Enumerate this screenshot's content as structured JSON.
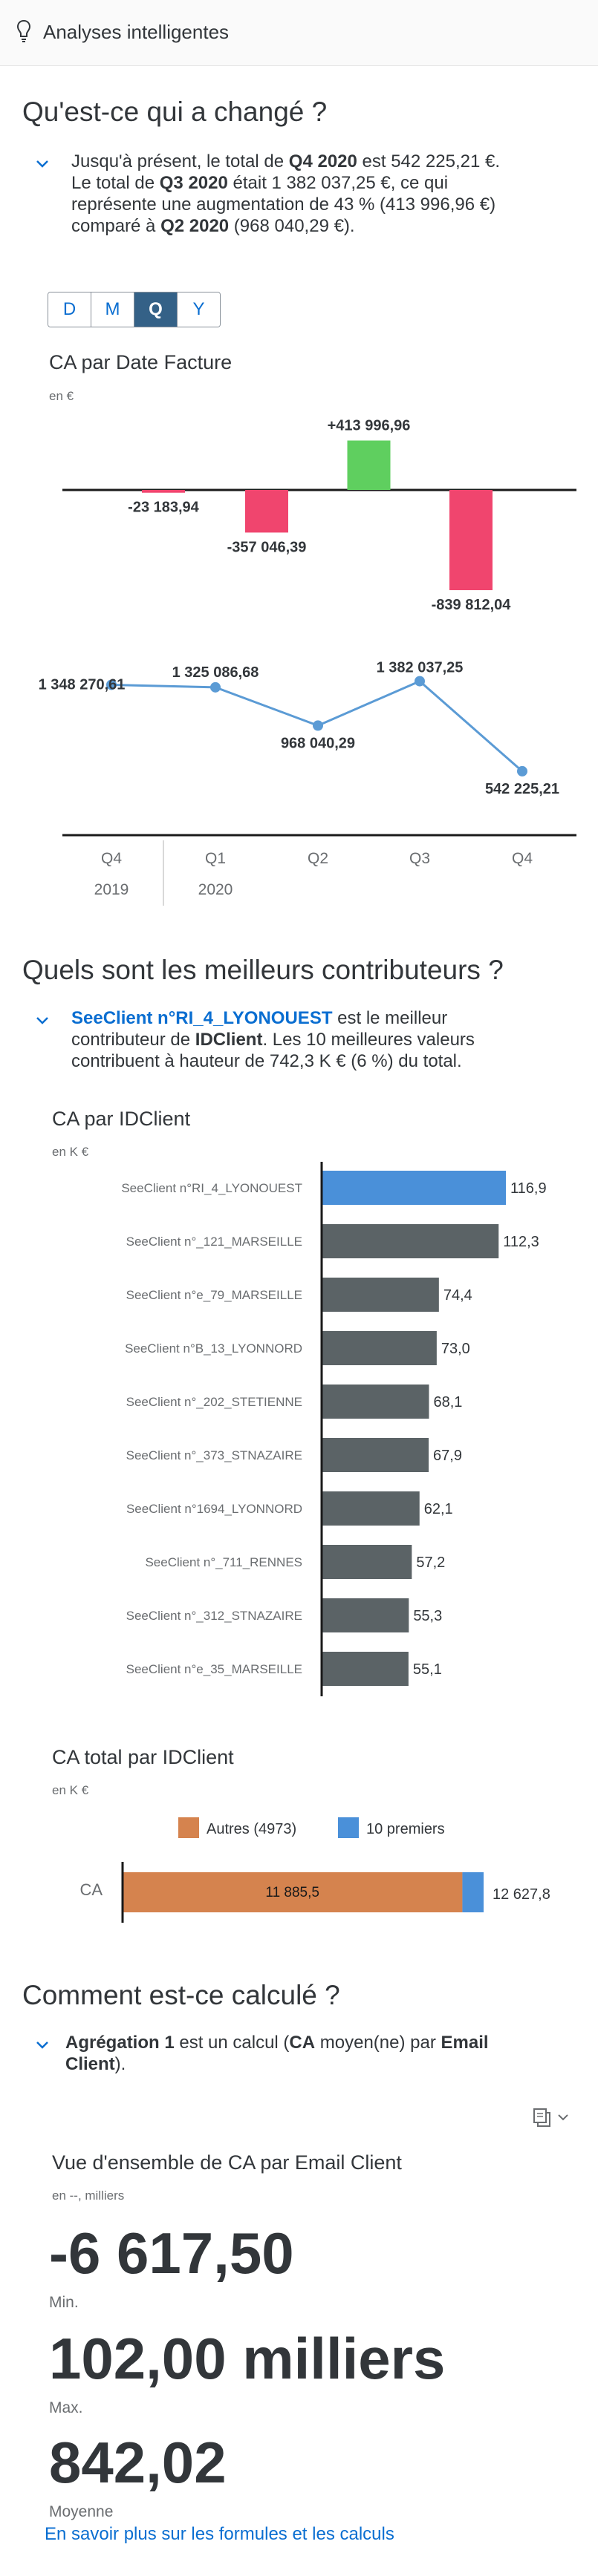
{
  "header": {
    "title": "Analyses intelligentes",
    "icon": "lightbulb-icon"
  },
  "section1": {
    "heading": "Qu'est-ce qui a changé ?",
    "summary": [
      {
        "t": "Jusqu'à présent, le total de ",
        "b": false
      },
      {
        "t": "Q4 2020",
        "b": true
      },
      {
        "t": " est 542 225,21 €. Le total de ",
        "b": false
      },
      {
        "t": "Q3 2020",
        "b": true
      },
      {
        "t": " était 1 382 037,25 €, ce qui représente une augmentation de 43 % (413 996,96 €) comparé à ",
        "b": false
      },
      {
        "t": "Q2 2020",
        "b": true
      },
      {
        "t": " (968 040,29 €).",
        "b": false
      }
    ],
    "granularity": {
      "options": [
        "D",
        "M",
        "Q",
        "Y"
      ],
      "selected": "Q"
    },
    "chart_title": "CA par Date Facture",
    "chart_unit": "en €"
  },
  "section2": {
    "heading": "Quels sont les meilleurs contributeurs ?",
    "summary": [
      {
        "t": "SeeClient n°RI_4_LYONOUEST",
        "b": "link"
      },
      {
        "t": " est le meilleur contributeur de ",
        "b": false
      },
      {
        "t": "IDClient",
        "b": true
      },
      {
        "t": ". Les 10 meilleures valeurs contribuent à hauteur de 742,3 K € (6 %) du total.",
        "b": false
      }
    ],
    "bar_title": "CA par IDClient",
    "bar_unit": "en K €",
    "total_title": "CA total par IDClient",
    "total_unit": "en K €"
  },
  "section3": {
    "heading": "Comment est-ce calculé ?",
    "summary": [
      {
        "t": "Agrégation 1",
        "b": true
      },
      {
        "t": " est un calcul (",
        "b": false
      },
      {
        "t": "CA",
        "b": true
      },
      {
        "t": " moyen(ne) par ",
        "b": false
      },
      {
        "t": "Email Client",
        "b": true
      },
      {
        "t": ").",
        "b": false
      }
    ],
    "card_title": "Vue d'ensemble de CA par Email Client",
    "card_unit": "en --, milliers",
    "kpis": [
      {
        "value": "-6 617,50",
        "label": "Min."
      },
      {
        "value": "102,00 milliers",
        "label": "Max."
      },
      {
        "value": "842,02",
        "label": "Moyenne"
      }
    ],
    "footer_link": "En savoir plus sur les formules et les calculs",
    "copy_icon": "copy-icon"
  },
  "colors": {
    "positive": "#5fcf5f",
    "negative": "#f0456e",
    "highlight": "#4a90d9",
    "bar": "#5b6366",
    "others": "#d5834e",
    "line": "#5b9bd5",
    "link": "#0a6ed1"
  },
  "chart_data": [
    {
      "type": "bar",
      "subtype": "waterfall-variance",
      "title": "CA par Date Facture",
      "unit": "en €",
      "categories": [
        "Q4 2019",
        "Q1 2020",
        "Q2 2020",
        "Q3 2020",
        "Q4 2020"
      ],
      "labels": [
        "-23 183,94",
        "-357 046,39",
        "+413 996,96",
        "-839 812,04"
      ],
      "values": [
        -23183.94,
        -357046.39,
        413996.96,
        -839812.04
      ]
    },
    {
      "type": "line",
      "x": [
        "Q4",
        "Q1",
        "Q2",
        "Q3",
        "Q4"
      ],
      "x_years": [
        "2019",
        "2020"
      ],
      "values": [
        1348270.61,
        1325086.68,
        968040.29,
        1382037.25,
        542225.21
      ],
      "labels": [
        "1 348 270,61",
        "1 325 086,68",
        "968 040,29",
        "1 382 037,25",
        "542 225,21"
      ]
    },
    {
      "type": "bar",
      "orientation": "horizontal",
      "title": "CA par IDClient",
      "unit": "en K €",
      "categories": [
        "SeeClient n°RI_4_LYONOUEST",
        "SeeClient n°_121_MARSEILLE",
        "SeeClient n°e_79_MARSEILLE",
        "SeeClient n°B_13_LYONNORD",
        "SeeClient n°_202_STETIENNE",
        "SeeClient n°_373_STNAZAIRE",
        "SeeClient n°1694_LYONNORD",
        "SeeClient n°_711_RENNES",
        "SeeClient n°_312_STNAZAIRE",
        "SeeClient n°e_35_MARSEILLE"
      ],
      "values": [
        116.9,
        112.3,
        74.4,
        73.0,
        68.1,
        67.9,
        62.1,
        57.2,
        55.3,
        55.1
      ],
      "labels": [
        "116,9",
        "112,3",
        "74,4",
        "73,0",
        "68,1",
        "67,9",
        "62,1",
        "57,2",
        "55,3",
        "55,1"
      ],
      "highlight_index": 0
    },
    {
      "type": "bar",
      "subtype": "stacked-horizontal",
      "title": "CA total par IDClient",
      "unit": "en K €",
      "categories": [
        "CA"
      ],
      "series": [
        {
          "name": "Autres (4973)",
          "values": [
            11885.5
          ],
          "label": "11 885,5"
        },
        {
          "name": "10 premiers",
          "values": [
            742.3
          ]
        }
      ],
      "total": 12627.8,
      "total_label": "12 627,8",
      "legend": "top"
    }
  ]
}
